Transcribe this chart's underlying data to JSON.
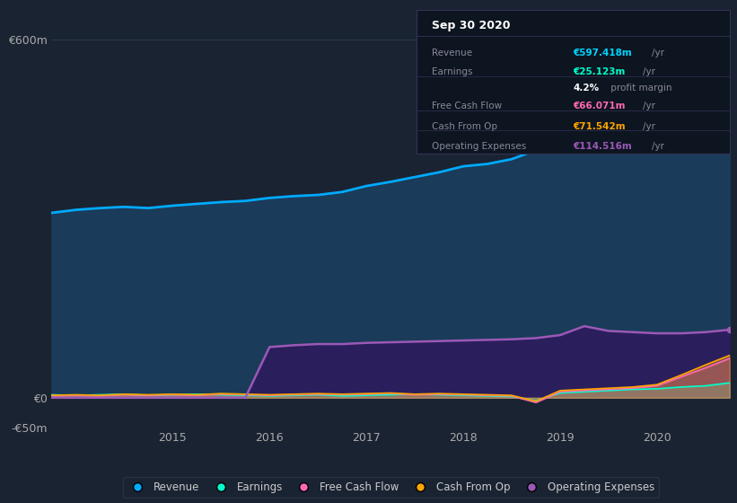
{
  "background_color": "#1a2332",
  "plot_bg_color": "#1a2332",
  "title_box": {
    "date": "Sep 30 2020",
    "rows": [
      {
        "label": "Revenue",
        "value": "€597.418m",
        "unit": "/yr",
        "value_color": "#00d4ff"
      },
      {
        "label": "Earnings",
        "value": "€25.123m",
        "unit": "/yr",
        "value_color": "#00ffcc"
      },
      {
        "label": "",
        "value": "4.2%",
        "unit": " profit margin",
        "value_color": "#ffffff"
      },
      {
        "label": "Free Cash Flow",
        "value": "€66.071m",
        "unit": "/yr",
        "value_color": "#ff69b4"
      },
      {
        "label": "Cash From Op",
        "value": "€71.542m",
        "unit": "/yr",
        "value_color": "#ffa500"
      },
      {
        "label": "Operating Expenses",
        "value": "€114.516m",
        "unit": "/yr",
        "value_color": "#9b59b6"
      }
    ]
  },
  "x_years": [
    2013.75,
    2014.0,
    2014.25,
    2014.5,
    2014.75,
    2015.0,
    2015.25,
    2015.5,
    2015.75,
    2016.0,
    2016.25,
    2016.5,
    2016.75,
    2017.0,
    2017.25,
    2017.5,
    2017.75,
    2018.0,
    2018.25,
    2018.5,
    2018.75,
    2019.0,
    2019.25,
    2019.5,
    2019.75,
    2020.0,
    2020.25,
    2020.5,
    2020.75
  ],
  "revenue": [
    310,
    315,
    318,
    320,
    318,
    322,
    325,
    328,
    330,
    335,
    338,
    340,
    345,
    355,
    362,
    370,
    378,
    388,
    392,
    400,
    415,
    430,
    445,
    460,
    470,
    490,
    520,
    560,
    597
  ],
  "earnings": [
    5,
    4,
    5,
    6,
    4,
    5,
    6,
    5,
    4,
    3,
    4,
    5,
    3,
    4,
    5,
    6,
    5,
    4,
    3,
    2,
    -5,
    8,
    10,
    12,
    14,
    15,
    18,
    20,
    25
  ],
  "free_cash_flow": [
    3,
    4,
    3,
    5,
    4,
    5,
    4,
    6,
    5,
    4,
    5,
    6,
    5,
    6,
    7,
    5,
    6,
    5,
    4,
    3,
    -8,
    10,
    12,
    14,
    16,
    20,
    35,
    50,
    66
  ],
  "cash_from_op": [
    4,
    5,
    4,
    6,
    5,
    6,
    5,
    7,
    6,
    5,
    6,
    7,
    6,
    7,
    8,
    6,
    7,
    6,
    5,
    4,
    -6,
    12,
    14,
    16,
    18,
    22,
    38,
    55,
    71
  ],
  "operating_expenses": [
    0,
    0,
    0,
    0,
    0,
    0,
    0,
    0,
    0,
    85,
    88,
    90,
    90,
    92,
    93,
    94,
    95,
    96,
    97,
    98,
    100,
    105,
    120,
    112,
    110,
    108,
    108,
    110,
    114
  ],
  "ylim": [
    -50,
    650
  ],
  "yticks": [
    -50,
    0,
    600
  ],
  "ytick_labels": [
    "-€50m",
    "€0",
    "€600m"
  ],
  "xticks": [
    2015,
    2016,
    2017,
    2018,
    2019,
    2020
  ],
  "revenue_color": "#00aaff",
  "earnings_color": "#00ffcc",
  "fcf_color": "#ff69b4",
  "cashop_color": "#ffa500",
  "opex_color": "#9b59b6",
  "revenue_fill_color": "#1a4060",
  "opex_fill_color": "#2d1b5e",
  "legend_items": [
    {
      "label": "Revenue",
      "color": "#00aaff"
    },
    {
      "label": "Earnings",
      "color": "#00ffcc"
    },
    {
      "label": "Free Cash Flow",
      "color": "#ff69b4"
    },
    {
      "label": "Cash From Op",
      "color": "#ffa500"
    },
    {
      "label": "Operating Expenses",
      "color": "#9b59b6"
    }
  ]
}
